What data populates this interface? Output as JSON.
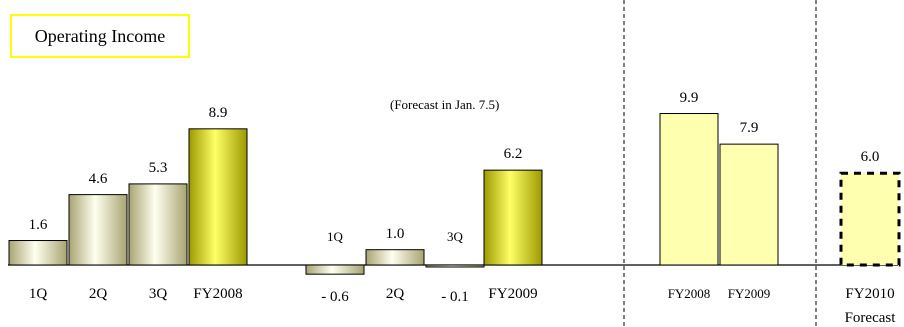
{
  "chart_data": {
    "type": "bar",
    "title": "Operating Income",
    "note": "(Forecast in Jan. 7.5)",
    "groups": [
      {
        "bars": [
          {
            "category": "1Q",
            "value": 1.6,
            "value_label": "1.6",
            "style": "gradient"
          },
          {
            "category": "2Q",
            "value": 4.6,
            "value_label": "4.6",
            "style": "gradient"
          },
          {
            "category": "3Q",
            "value": 5.3,
            "value_label": "5.3",
            "style": "gradient"
          },
          {
            "category": "FY2008",
            "value": 8.9,
            "value_label": "8.9",
            "style": "yellow-gradient"
          }
        ]
      },
      {
        "bars": [
          {
            "category": "1Q",
            "value": -0.6,
            "value_label": "- 0.6",
            "style": "gradient"
          },
          {
            "category": "2Q",
            "value": 1.0,
            "value_label": "1.0",
            "style": "gradient"
          },
          {
            "category": "3Q",
            "value": -0.1,
            "value_label": "- 0.1",
            "style": "gradient"
          },
          {
            "category": "FY2009",
            "value": 6.2,
            "value_label": "6.2",
            "style": "yellow-gradient"
          }
        ]
      },
      {
        "bars": [
          {
            "category": "FY2008",
            "value": 9.9,
            "value_label": "9.9",
            "style": "pale"
          },
          {
            "category": "FY2009",
            "value": 7.9,
            "value_label": "7.9",
            "style": "pale"
          }
        ]
      },
      {
        "bars": [
          {
            "category": "FY2010",
            "subcategory": "Forecast",
            "value": 6.0,
            "value_label": "6.0",
            "style": "pale-dashed"
          }
        ]
      }
    ],
    "ylim": [
      -0.6,
      9.9
    ],
    "xlabel": "",
    "ylabel": "",
    "grid": false,
    "colors": {
      "gradient_light": "#fffff0",
      "gradient_dark": "#a8a472",
      "yellow_light": "#ffff66",
      "yellow_dark": "#9c9a00",
      "pale": "#ffffb0",
      "divider": "#000000"
    }
  }
}
